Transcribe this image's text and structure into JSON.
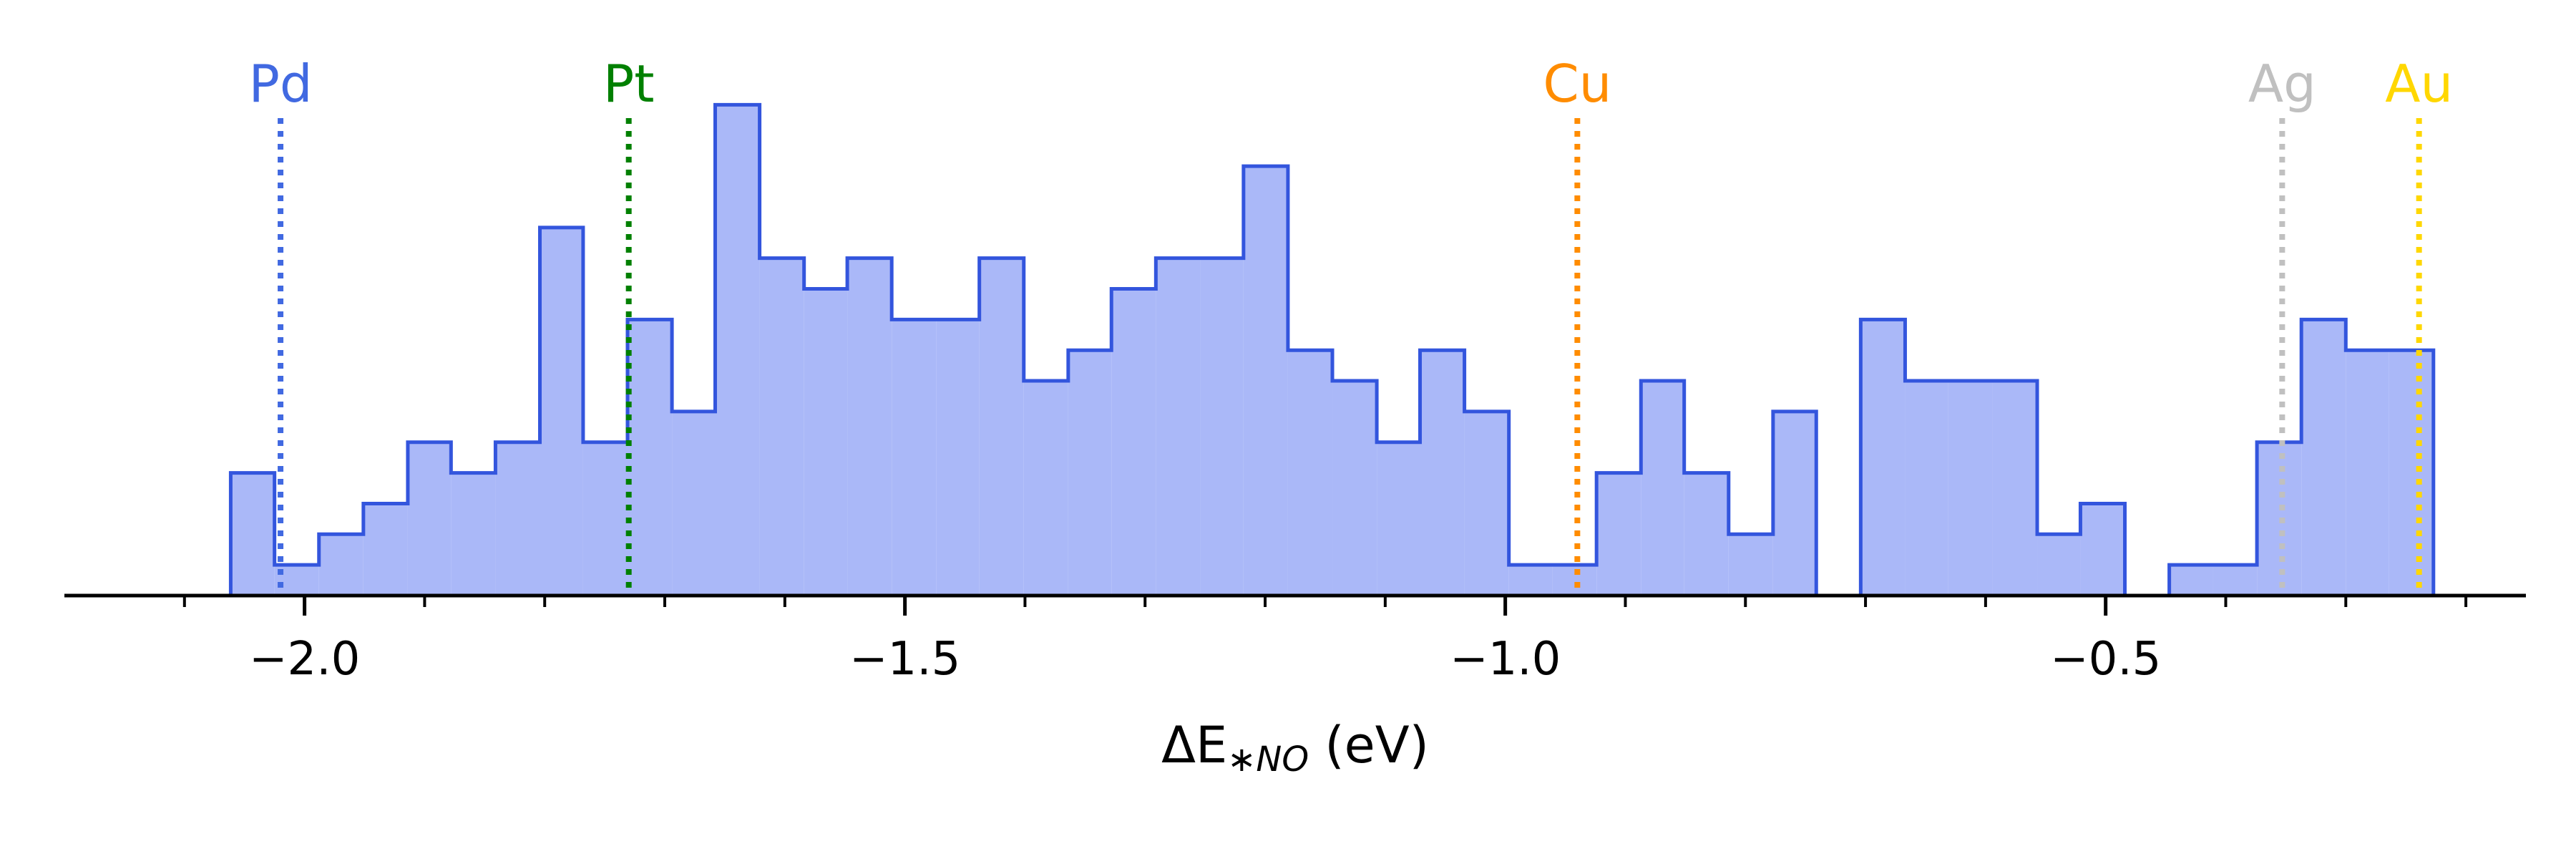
{
  "chart_data": {
    "type": "histogram",
    "xlabel": {
      "prefix": "ΔE",
      "subscript": "∗NO",
      "suffix": " (eV)"
    },
    "xlim": [
      -2.2,
      -0.15
    ],
    "ylim": [
      0,
      16.5
    ],
    "grid": false,
    "series_color": "#3355dd",
    "series_fill": "#aab8f8",
    "bins": [
      [
        -2.0615,
        -2.025,
        4
      ],
      [
        -2.025,
        -1.988,
        1
      ],
      [
        -1.988,
        -1.951,
        2
      ],
      [
        -1.951,
        -1.914,
        3
      ],
      [
        -1.914,
        -1.878,
        5
      ],
      [
        -1.878,
        -1.841,
        4
      ],
      [
        -1.841,
        -1.804,
        5
      ],
      [
        -1.804,
        -1.768,
        12
      ],
      [
        -1.768,
        -1.731,
        5
      ],
      [
        -1.731,
        -1.694,
        9
      ],
      [
        -1.694,
        -1.658,
        6
      ],
      [
        -1.658,
        -1.621,
        16
      ],
      [
        -1.621,
        -1.584,
        11
      ],
      [
        -1.584,
        -1.548,
        10
      ],
      [
        -1.548,
        -1.511,
        11
      ],
      [
        -1.511,
        -1.474,
        9
      ],
      [
        -1.474,
        -1.438,
        9
      ],
      [
        -1.438,
        -1.401,
        11
      ],
      [
        -1.401,
        -1.364,
        7
      ],
      [
        -1.364,
        -1.328,
        8
      ],
      [
        -1.328,
        -1.291,
        10
      ],
      [
        -1.291,
        -1.254,
        11
      ],
      [
        -1.254,
        -1.218,
        11
      ],
      [
        -1.218,
        -1.181,
        14
      ],
      [
        -1.181,
        -1.144,
        8
      ],
      [
        -1.144,
        -1.107,
        7
      ],
      [
        -1.107,
        -1.071,
        5
      ],
      [
        -1.071,
        -1.034,
        8
      ],
      [
        -1.034,
        -0.997,
        6
      ],
      [
        -0.997,
        -0.961,
        1
      ],
      [
        -0.961,
        -0.924,
        1
      ],
      [
        -0.924,
        -0.887,
        4
      ],
      [
        -0.887,
        -0.851,
        7
      ],
      [
        -0.851,
        -0.814,
        4
      ],
      [
        -0.814,
        -0.777,
        2
      ],
      [
        -0.777,
        -0.741,
        6
      ],
      [
        -0.741,
        -0.704,
        0
      ],
      [
        -0.704,
        -0.667,
        9
      ],
      [
        -0.667,
        -0.631,
        7
      ],
      [
        -0.631,
        -0.594,
        7
      ],
      [
        -0.594,
        -0.557,
        7
      ],
      [
        -0.557,
        -0.521,
        2
      ],
      [
        -0.521,
        -0.484,
        3
      ],
      [
        -0.484,
        -0.447,
        0
      ],
      [
        -0.447,
        -0.411,
        1
      ],
      [
        -0.411,
        -0.374,
        1
      ],
      [
        -0.374,
        -0.337,
        5
      ],
      [
        -0.337,
        -0.3,
        9
      ],
      [
        -0.3,
        -0.264,
        8
      ],
      [
        -0.264,
        -0.227,
        8
      ]
    ],
    "major_ticks": [
      -2.0,
      -1.5,
      -1.0,
      -0.5
    ],
    "tick_labels": [
      "−2.0",
      "−1.5",
      "−1.0",
      "−0.5"
    ],
    "minor_ticks": [
      -2.1,
      -2.0,
      -1.9,
      -1.8,
      -1.7,
      -1.6,
      -1.5,
      -1.4,
      -1.3,
      -1.2,
      -1.1,
      -1.0,
      -0.9,
      -0.8,
      -0.7,
      -0.6,
      -0.5,
      -0.4,
      -0.3,
      -0.2
    ],
    "reference_lines": [
      {
        "label": "Pd",
        "x": -2.02,
        "color": "#4169e1"
      },
      {
        "label": "Pt",
        "x": -1.73,
        "color": "#008000"
      },
      {
        "label": "Cu",
        "x": -0.94,
        "color": "#ff8c00"
      },
      {
        "label": "Ag",
        "x": -0.353,
        "color": "#c0c0c0"
      },
      {
        "label": "Au",
        "x": -0.239,
        "color": "#ffd700"
      }
    ]
  }
}
